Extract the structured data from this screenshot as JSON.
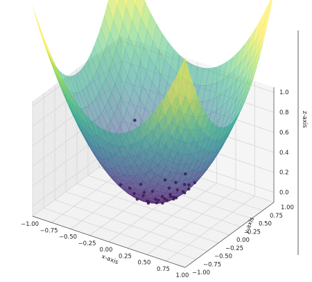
{
  "chart_data": {
    "type": "surface+scatter",
    "surface_function": "z = x^2 + y^2",
    "surface_colormap": "viridis",
    "surface_alpha": 0.5,
    "xlabel": "x-axis",
    "ylabel": "y-axis",
    "zlabel": "z-axis",
    "xlim": [
      -1.0,
      1.0
    ],
    "ylim": [
      -1.0,
      1.0
    ],
    "zlim": [
      -0.1,
      1.05
    ],
    "x_ticks": [
      "−1.00",
      "−0.75",
      "−0.50",
      "−0.25",
      "0.00",
      "0.25",
      "0.50",
      "0.75",
      "1.00"
    ],
    "y_ticks": [
      "−1.00",
      "−0.75",
      "−0.50",
      "−0.25",
      "0.00",
      "0.25",
      "0.50",
      "0.75",
      "1.00"
    ],
    "z_ticks": [
      "0.0",
      "0.2",
      "0.4",
      "0.6",
      "0.8",
      "1.0"
    ],
    "grid": true,
    "points": [
      {
        "x": -0.52,
        "y": 0.48,
        "z": 0.5
      },
      {
        "x": -0.3,
        "y": -0.22,
        "z": 0.14
      },
      {
        "x": -0.18,
        "y": -0.12,
        "z": 0.05
      },
      {
        "x": 0.08,
        "y": 0.22,
        "z": 0.06
      },
      {
        "x": 0.02,
        "y": 0.02,
        "z": 0.0
      },
      {
        "x": 0.12,
        "y": 0.05,
        "z": 0.02
      },
      {
        "x": -0.08,
        "y": 0.12,
        "z": 0.02
      },
      {
        "x": 0.18,
        "y": -0.1,
        "z": 0.04
      },
      {
        "x": 0.22,
        "y": 0.08,
        "z": 0.05
      },
      {
        "x": 0.28,
        "y": -0.02,
        "z": 0.08
      },
      {
        "x": 0.04,
        "y": -0.18,
        "z": 0.03
      },
      {
        "x": -0.12,
        "y": -0.02,
        "z": 0.01
      },
      {
        "x": 0.32,
        "y": 0.12,
        "z": 0.12
      },
      {
        "x": 0.1,
        "y": -0.28,
        "z": 0.09
      },
      {
        "x": 0.36,
        "y": -0.1,
        "z": 0.14
      },
      {
        "x": -0.02,
        "y": 0.3,
        "z": 0.09
      },
      {
        "x": 0.2,
        "y": 0.2,
        "z": 0.08
      },
      {
        "x": 0.14,
        "y": 0.14,
        "z": 0.04
      },
      {
        "x": 0.26,
        "y": 0.26,
        "z": 0.13
      },
      {
        "x": 0.4,
        "y": 0.02,
        "z": 0.16
      },
      {
        "x": 0.3,
        "y": -0.2,
        "z": 0.13
      },
      {
        "x": -0.06,
        "y": -0.26,
        "z": 0.07
      },
      {
        "x": 0.16,
        "y": -0.2,
        "z": 0.07
      },
      {
        "x": 0.06,
        "y": 0.1,
        "z": 0.01
      },
      {
        "x": -0.14,
        "y": 0.04,
        "z": 0.02
      },
      {
        "x": 0.44,
        "y": 0.18,
        "z": 0.22
      },
      {
        "x": 0.24,
        "y": -0.3,
        "z": 0.15
      },
      {
        "x": 0.34,
        "y": 0.22,
        "z": 0.16
      },
      {
        "x": -0.22,
        "y": 0.1,
        "z": 0.06
      },
      {
        "x": 0.5,
        "y": -0.06,
        "z": 0.25
      },
      {
        "x": -0.02,
        "y": -0.1,
        "z": 0.01
      },
      {
        "x": 0.12,
        "y": 0.3,
        "z": 0.1
      },
      {
        "x": 0.38,
        "y": -0.26,
        "z": 0.21
      },
      {
        "x": -0.26,
        "y": -0.08,
        "z": 0.07
      },
      {
        "x": 0.2,
        "y": 0.38,
        "z": 0.18
      }
    ]
  }
}
